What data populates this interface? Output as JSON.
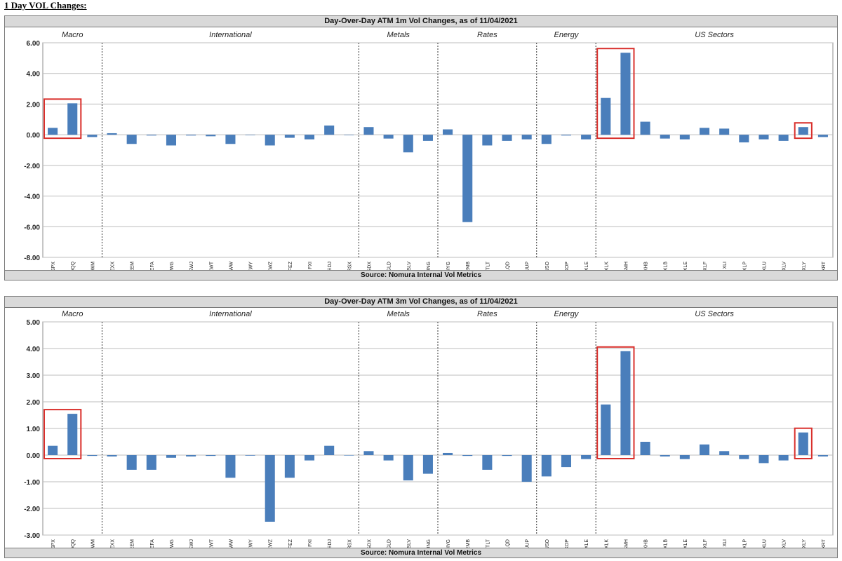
{
  "page": {
    "heading": "1 Day VOL Changes:"
  },
  "charts": [
    {
      "title": "Day-Over-Day ATM 1m Vol Changes, as of 11/04/2021",
      "source": "Source: Nomura Internal Vol Metrics"
    },
    {
      "title": "Day-Over-Day ATM 3m Vol Changes, as of 11/04/2021",
      "source": "Source: Nomura Internal Vol Metrics"
    }
  ],
  "chart_data": [
    {
      "type": "bar",
      "title": "Day-Over-Day ATM 1m Vol Changes, as of 11/04/2021",
      "categories": [
        "SPX",
        "QQQ",
        "IWM",
        "EXX",
        "EEM",
        "EFA",
        "EWG",
        "EWJ",
        "EWT",
        "EWW",
        "EWY",
        "EWZ",
        "FEZ",
        "FXI",
        "HEDJ",
        "RSX",
        "GDX",
        "GLD",
        "SLV",
        "UNG",
        "HYG",
        "EMB",
        "TLT",
        "LQD",
        "UUP",
        "USO",
        "XOP",
        "XLE",
        "XLK",
        "SMH",
        "XHB",
        "XLB",
        "XLE",
        "XLF",
        "XLI",
        "XLP",
        "XLU",
        "XLV",
        "XLY",
        "XRT"
      ],
      "values": [
        0.45,
        2.05,
        -0.15,
        0.1,
        -0.6,
        -0.05,
        -0.7,
        -0.05,
        -0.1,
        -0.6,
        -0.02,
        -0.7,
        -0.2,
        -0.3,
        0.6,
        0.0,
        0.5,
        -0.25,
        -1.15,
        -0.4,
        0.35,
        -5.7,
        -0.7,
        -0.4,
        -0.3,
        -0.6,
        -0.05,
        -0.3,
        2.4,
        5.35,
        0.85,
        -0.25,
        -0.3,
        0.45,
        0.4,
        -0.5,
        -0.3,
        -0.4,
        0.5,
        -0.15
      ],
      "groups": [
        {
          "label": "Macro",
          "count": 3
        },
        {
          "label": "International",
          "count": 13
        },
        {
          "label": "Metals",
          "count": 4
        },
        {
          "label": "Rates",
          "count": 5
        },
        {
          "label": "Energy",
          "count": 3
        },
        {
          "label": "US Sectors",
          "count": 12
        }
      ],
      "ylim": [
        -8,
        6
      ],
      "yticks": [
        "6.00",
        "4.00",
        "2.00",
        "0.00",
        "-2.00",
        "-4.00",
        "-6.00",
        "-8.00"
      ],
      "ytick_values": [
        6,
        4,
        2,
        0,
        -2,
        -4,
        -6,
        -8
      ],
      "highlights": [
        [
          0,
          1
        ],
        [
          28,
          29
        ],
        [
          38,
          38
        ]
      ],
      "grid": true,
      "bar_color": "#4a7ebb",
      "highlight_color": "#d9302c"
    },
    {
      "type": "bar",
      "title": "Day-Over-Day ATM 3m Vol Changes, as of 11/04/2021",
      "categories": [
        "SPX",
        "QQQ",
        "IWM",
        "EXX",
        "EEM",
        "EFA",
        "EWG",
        "EWJ",
        "EWT",
        "EWW",
        "EWY",
        "EWZ",
        "FEZ",
        "FXI",
        "HEDJ",
        "RSX",
        "GDX",
        "GLD",
        "SLV",
        "UNG",
        "HYG",
        "EMB",
        "TLT",
        "LQD",
        "UUP",
        "USO",
        "XOP",
        "XLE",
        "XLK",
        "SMH",
        "XHB",
        "XLB",
        "XLE",
        "XLF",
        "XLI",
        "XLP",
        "XLU",
        "XLV",
        "XLY",
        "XRT"
      ],
      "values": [
        0.35,
        1.55,
        -0.03,
        -0.05,
        -0.55,
        -0.55,
        -0.1,
        -0.05,
        -0.03,
        -0.85,
        -0.02,
        -2.5,
        -0.85,
        -0.2,
        0.35,
        0.0,
        0.15,
        -0.2,
        -0.95,
        -0.7,
        0.08,
        -0.03,
        -0.55,
        -0.03,
        -1.0,
        -0.8,
        -0.45,
        -0.15,
        1.9,
        3.9,
        0.5,
        -0.05,
        -0.15,
        0.4,
        0.15,
        -0.15,
        -0.3,
        -0.2,
        0.85,
        -0.05
      ],
      "groups": [
        {
          "label": "Macro",
          "count": 3
        },
        {
          "label": "International",
          "count": 13
        },
        {
          "label": "Metals",
          "count": 4
        },
        {
          "label": "Rates",
          "count": 5
        },
        {
          "label": "Energy",
          "count": 3
        },
        {
          "label": "US Sectors",
          "count": 12
        }
      ],
      "ylim": [
        -3,
        5
      ],
      "yticks": [
        "5.00",
        "4.00",
        "3.00",
        "2.00",
        "1.00",
        "0.00",
        "-1.00",
        "-2.00",
        "-3.00"
      ],
      "ytick_values": [
        5,
        4,
        3,
        2,
        1,
        0,
        -1,
        -2,
        -3
      ],
      "highlights": [
        [
          0,
          1
        ],
        [
          28,
          29
        ],
        [
          38,
          38
        ]
      ],
      "grid": true,
      "bar_color": "#4a7ebb",
      "highlight_color": "#d9302c"
    }
  ]
}
